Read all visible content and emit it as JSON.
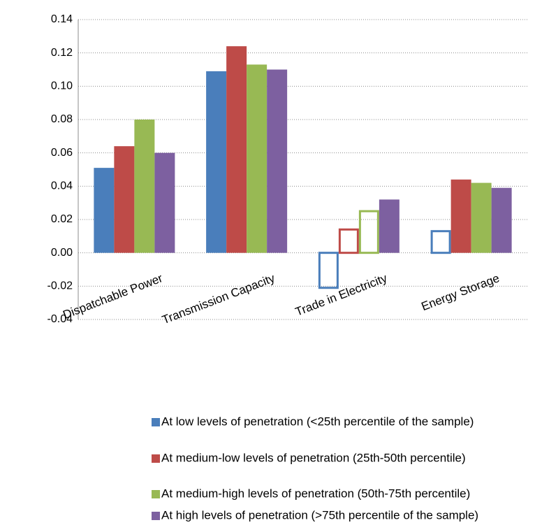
{
  "chart_data": {
    "type": "bar",
    "categories": [
      "Dispatchable Power",
      "Transmission Capacity",
      "Trade in Electricity",
      "Energy Storage"
    ],
    "series": [
      {
        "name": "At low levels of penetration (<25th percentile of the sample)",
        "color": "#4a7ebb",
        "values": [
          0.051,
          0.109,
          -0.021,
          0.013
        ],
        "hollow": [
          false,
          false,
          true,
          true
        ]
      },
      {
        "name": "At medium-low levels of penetration (25th-50th percentile)",
        "color": "#be4b48",
        "values": [
          0.064,
          0.124,
          0.014,
          0.044
        ],
        "hollow": [
          false,
          false,
          true,
          false
        ]
      },
      {
        "name": "At medium-high levels of penetration (50th-75th percentile)",
        "color": "#98b954",
        "values": [
          0.08,
          0.113,
          0.025,
          0.042
        ],
        "hollow": [
          false,
          false,
          true,
          false
        ]
      },
      {
        "name": "At high levels of penetration (>75th percentile of the sample)",
        "color": "#7d60a0",
        "values": [
          0.06,
          0.11,
          0.032,
          0.039
        ],
        "hollow": [
          false,
          false,
          false,
          false
        ]
      }
    ],
    "ylim": [
      -0.04,
      0.14
    ],
    "yticks": [
      0.14,
      0.12,
      {
        "value": 0.1,
        "label": "0.10"
      },
      0.08,
      0.06,
      0.04,
      0.02,
      {
        "value": 0,
        "label": "0.00"
      },
      -0.02,
      -0.04
    ],
    "grid": true,
    "legend": "bottom"
  }
}
